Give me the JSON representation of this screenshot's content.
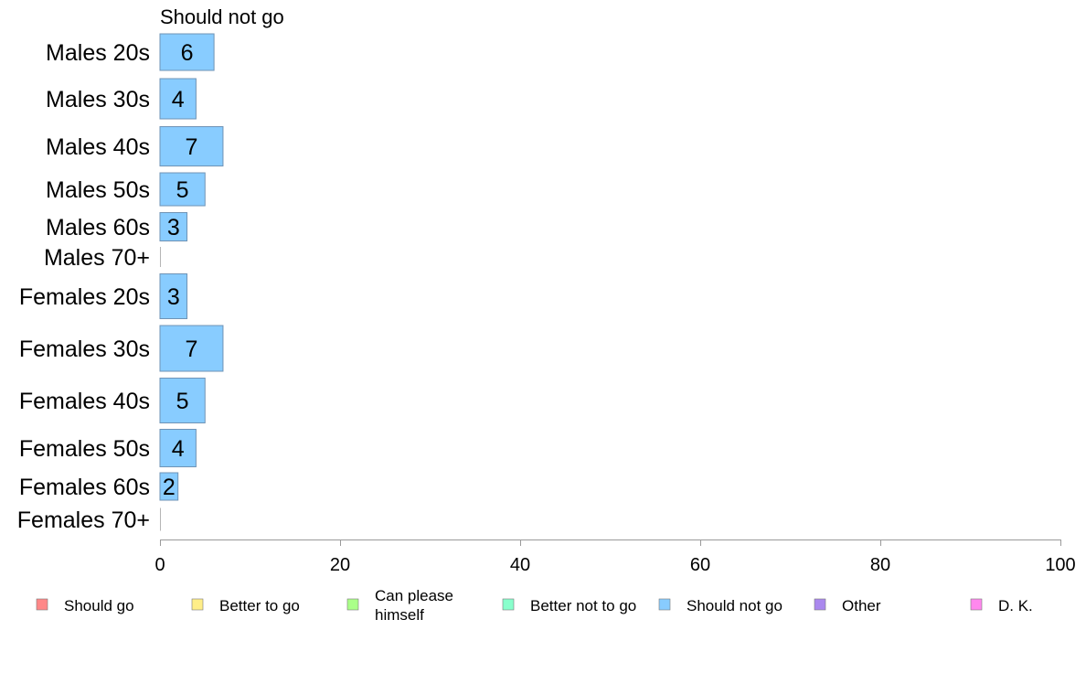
{
  "chart_data": {
    "type": "bar",
    "orientation": "horizontal",
    "panel_title": "Should not go",
    "categories": [
      "Males 20s",
      "Males 30s",
      "Males 40s",
      "Males 50s",
      "Males 60s",
      "Males 70+",
      "Females 20s",
      "Females 30s",
      "Females 40s",
      "Females 50s",
      "Females 60s",
      "Females 70+"
    ],
    "series": [
      {
        "name": "Should not go",
        "values": [
          6,
          4,
          7,
          5,
          3,
          0,
          3,
          7,
          5,
          4,
          2,
          0
        ],
        "color": "#88ccff"
      }
    ],
    "bar_labels": [
      "6",
      "4",
      "7",
      "5",
      "3",
      "",
      "3",
      "7",
      "5",
      "4",
      "2",
      ""
    ],
    "xlim": [
      0,
      100
    ],
    "x_ticks": [
      0,
      20,
      40,
      60,
      80,
      100
    ],
    "x_tick_labels": [
      "0",
      "20",
      "40",
      "60",
      "80",
      "100"
    ],
    "grid": false,
    "legend_position": "bottom",
    "legend": [
      {
        "label": "Should go",
        "color": "#ff8888"
      },
      {
        "label": "Better to go",
        "color": "#ffee88"
      },
      {
        "label": "Can please\nhimself",
        "color": "#aaff88"
      },
      {
        "label": "Better not to go",
        "color": "#88ffcc"
      },
      {
        "label": "Should not go",
        "color": "#88ccff"
      },
      {
        "label": "Other",
        "color": "#aa88ee"
      },
      {
        "label": "D. K.",
        "color": "#ff88ee"
      }
    ]
  }
}
